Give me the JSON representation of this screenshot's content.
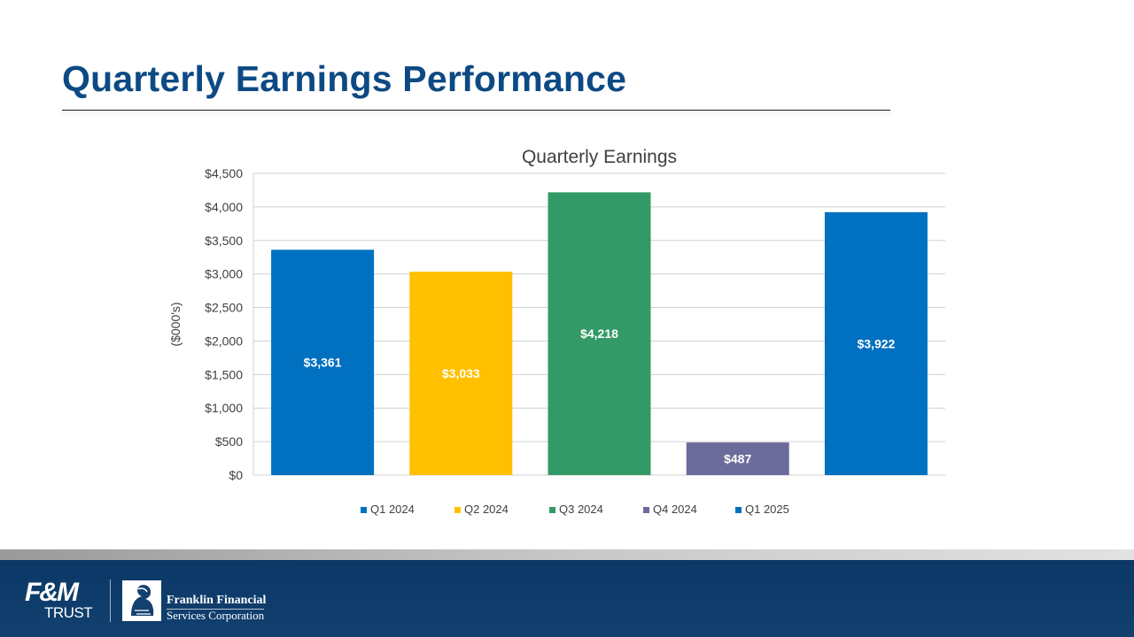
{
  "slide": {
    "title": "Quarterly Earnings Performance"
  },
  "chart_data": {
    "type": "bar",
    "title": "Quarterly Earnings",
    "ylabel": "($000's)",
    "xlabel": "",
    "ylim": [
      0,
      4500
    ],
    "yticks": [
      0,
      500,
      1000,
      1500,
      2000,
      2500,
      3000,
      3500,
      4000,
      4500
    ],
    "ytick_labels": [
      "$0",
      "$500",
      "$1,000",
      "$1,500",
      "$2,000",
      "$2,500",
      "$3,000",
      "$3,500",
      "$4,000",
      "$4,500"
    ],
    "grid": true,
    "legend_position": "bottom",
    "categories": [
      "Q1 2024",
      "Q2 2024",
      "Q3 2024",
      "Q4 2024",
      "Q1 2025"
    ],
    "values": [
      3361,
      3033,
      4218,
      487,
      3922
    ],
    "data_labels": [
      "$3,361",
      "$3,033",
      "$4,218",
      "$487",
      "$3,922"
    ],
    "colors": [
      "#0070c0",
      "#ffc000",
      "#339966",
      "#6c6c9c",
      "#0070c0"
    ]
  },
  "footer": {
    "logo_fm_mark": "F&M",
    "logo_fm_sub": "TRUST",
    "logo_company_line1": "Franklin Financial",
    "logo_company_line2": "Services Corporation",
    "band_color": "#0b3866"
  }
}
